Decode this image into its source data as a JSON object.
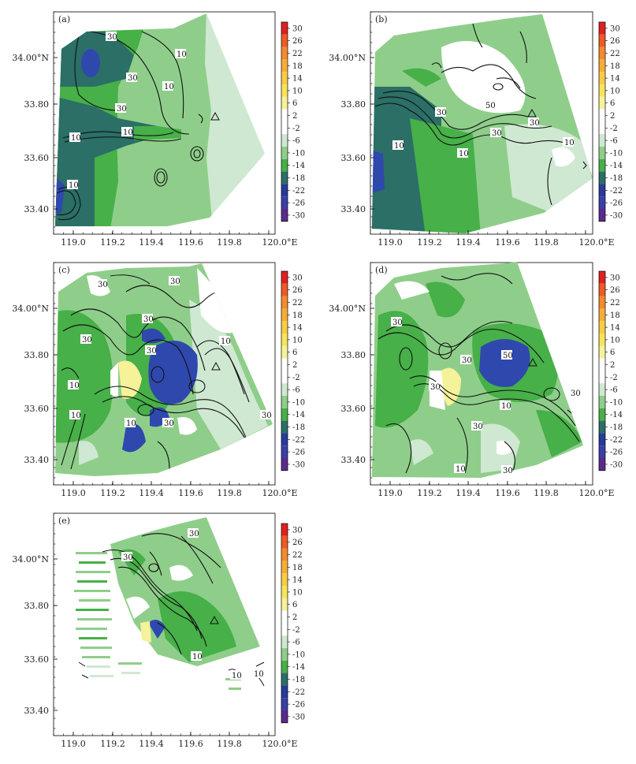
{
  "figure": {
    "panels": [
      {
        "tag": "(a)",
        "contour_labels": [
          "30",
          "30",
          "10",
          "10",
          "30",
          "10",
          "10",
          "10"
        ]
      },
      {
        "tag": "(b)",
        "contour_labels": [
          "50",
          "30",
          "30",
          "30",
          "10",
          "10",
          "10"
        ]
      },
      {
        "tag": "(c)",
        "contour_labels": [
          "30",
          "30",
          "30",
          "30",
          "30",
          "10",
          "10",
          "10",
          "30",
          "10",
          "30"
        ]
      },
      {
        "tag": "(d)",
        "contour_labels": [
          "30",
          "50",
          "30",
          "30",
          "10",
          "30",
          "10",
          "30",
          "30"
        ]
      },
      {
        "tag": "(e)",
        "contour_labels": [
          "30",
          "30",
          "10",
          "10",
          "10"
        ]
      }
    ],
    "x_tick_labels": [
      "119.0",
      "119.2",
      "119.4",
      "119.6",
      "119.8",
      "120.0°E"
    ],
    "y_tick_labels": [
      "34.00°N",
      "33.80",
      "33.60",
      "33.40"
    ],
    "colorbar_labels": [
      "30",
      "26",
      "22",
      "18",
      "14",
      "10",
      "6",
      "2",
      "-2",
      "-6",
      "-10",
      "-14",
      "-18",
      "-22",
      "-26",
      "-30"
    ],
    "colorbar_colors": [
      "#e02020",
      "#ee5a24",
      "#f38a2c",
      "#f6ad38",
      "#f8cc45",
      "#f7e45c",
      "#f6f29a",
      "#ffffff",
      "#ffffff",
      "#cfe8d2",
      "#8fce8a",
      "#47b048",
      "#2b6f66",
      "#283a9a",
      "#3b3ea8",
      "#5b2a8c"
    ],
    "shading_colors": {
      "light_green": "#cfe8d2",
      "mid_green": "#8fce8a",
      "green": "#47b048",
      "teal": "#2b6f66",
      "blue": "#2f48ad",
      "yellow": "#f6f29a",
      "white": "#ffffff"
    }
  }
}
